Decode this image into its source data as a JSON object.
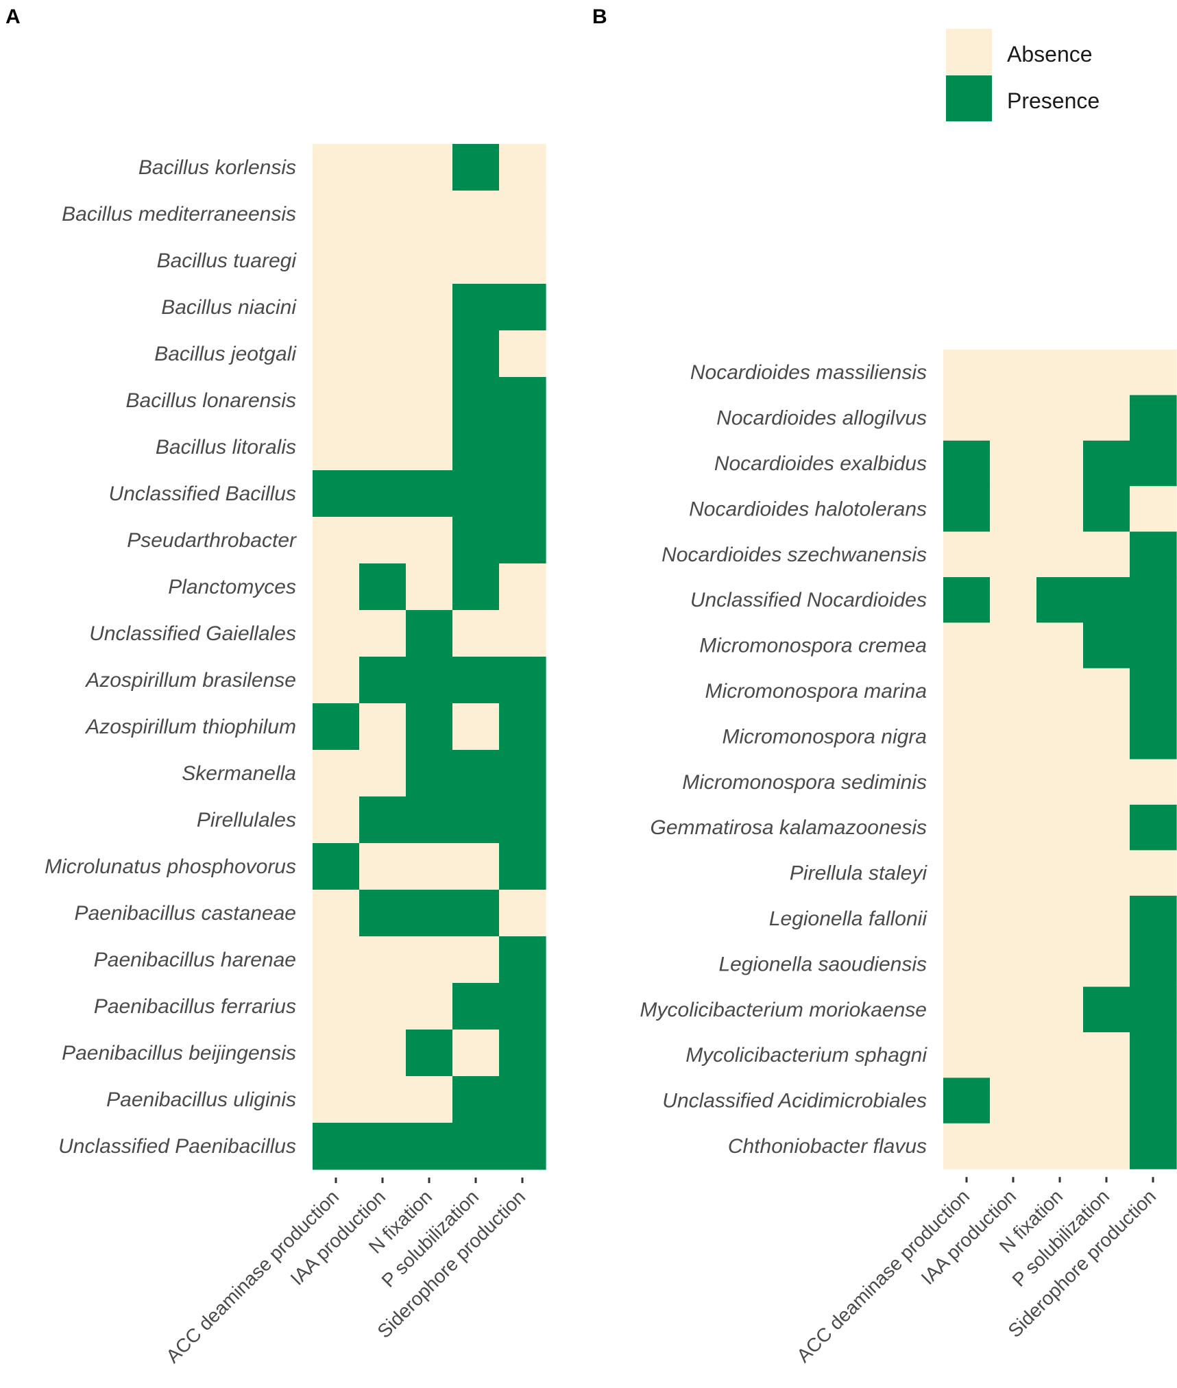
{
  "legend": {
    "items": [
      {
        "label": "Absence",
        "color": "#fdeed6"
      },
      {
        "label": "Presence",
        "color": "#008c51"
      }
    ]
  },
  "chart_data": [
    {
      "type": "heatmap",
      "panel": "A",
      "columns": [
        "ACC deaminase production",
        "IAA production",
        "N fixation",
        "P solubilization",
        "Siderophore production"
      ],
      "rows": [
        "Bacillus korlensis",
        "Bacillus mediterraneensis",
        "Bacillus tuaregi",
        "Bacillus niacini",
        "Bacillus jeotgali",
        "Bacillus lonarensis",
        "Bacillus litoralis",
        "Unclassified Bacillus",
        "Pseudarthrobacter",
        "Planctomyces",
        "Unclassified Gaiellales",
        "Azospirillum brasilense",
        "Azospirillum thiophilum",
        "Skermanella",
        "Pirellulales",
        "Microlunatus phosphovorus",
        "Paenibacillus castaneae",
        "Paenibacillus harenae",
        "Paenibacillus ferrarius",
        "Paenibacillus beijingensis",
        "Paenibacillus uliginis",
        "Unclassified Paenibacillus"
      ],
      "values": [
        [
          0,
          0,
          0,
          1,
          0
        ],
        [
          0,
          0,
          0,
          0,
          0
        ],
        [
          0,
          0,
          0,
          0,
          0
        ],
        [
          0,
          0,
          0,
          1,
          1
        ],
        [
          0,
          0,
          0,
          1,
          0
        ],
        [
          0,
          0,
          0,
          1,
          1
        ],
        [
          0,
          0,
          0,
          1,
          1
        ],
        [
          1,
          1,
          1,
          1,
          1
        ],
        [
          0,
          0,
          0,
          1,
          1
        ],
        [
          0,
          1,
          0,
          1,
          0
        ],
        [
          0,
          0,
          1,
          0,
          0
        ],
        [
          0,
          1,
          1,
          1,
          1
        ],
        [
          1,
          0,
          1,
          0,
          1
        ],
        [
          0,
          0,
          1,
          1,
          1
        ],
        [
          0,
          1,
          1,
          1,
          1
        ],
        [
          1,
          0,
          0,
          0,
          1
        ],
        [
          0,
          1,
          1,
          1,
          0
        ],
        [
          0,
          0,
          0,
          0,
          1
        ],
        [
          0,
          0,
          0,
          1,
          1
        ],
        [
          0,
          0,
          1,
          0,
          1
        ],
        [
          0,
          0,
          0,
          1,
          1
        ],
        [
          1,
          1,
          1,
          1,
          1
        ]
      ]
    },
    {
      "type": "heatmap",
      "panel": "B",
      "columns": [
        "ACC deaminase production",
        "IAA production",
        "N fixation",
        "P solubilization",
        "Siderophore production"
      ],
      "rows": [
        "Nocardioides massiliensis",
        "Nocardioides allogilvus",
        "Nocardioides exalbidus",
        "Nocardioides halotolerans",
        "Nocardioides szechwanensis",
        "Unclassified Nocardioides",
        "Micromonospora cremea",
        "Micromonospora marina",
        "Micromonospora nigra",
        "Micromonospora sediminis",
        "Gemmatirosa kalamazoonesis",
        "Pirellula staleyi",
        "Legionella fallonii",
        "Legionella saoudiensis",
        "Mycolicibacterium moriokaense",
        "Mycolicibacterium sphagni",
        "Unclassified Acidimicrobiales",
        "Chthoniobacter flavus"
      ],
      "values": [
        [
          0,
          0,
          0,
          0,
          0
        ],
        [
          0,
          0,
          0,
          0,
          1
        ],
        [
          1,
          0,
          0,
          1,
          1
        ],
        [
          1,
          0,
          0,
          1,
          0
        ],
        [
          0,
          0,
          0,
          0,
          1
        ],
        [
          1,
          0,
          1,
          1,
          1
        ],
        [
          0,
          0,
          0,
          1,
          1
        ],
        [
          0,
          0,
          0,
          0,
          1
        ],
        [
          0,
          0,
          0,
          0,
          1
        ],
        [
          0,
          0,
          0,
          0,
          0
        ],
        [
          0,
          0,
          0,
          0,
          1
        ],
        [
          0,
          0,
          0,
          0,
          0
        ],
        [
          0,
          0,
          0,
          0,
          1
        ],
        [
          0,
          0,
          0,
          0,
          1
        ],
        [
          0,
          0,
          0,
          1,
          1
        ],
        [
          0,
          0,
          0,
          0,
          1
        ],
        [
          1,
          0,
          0,
          0,
          1
        ],
        [
          0,
          0,
          0,
          0,
          1
        ]
      ]
    }
  ]
}
